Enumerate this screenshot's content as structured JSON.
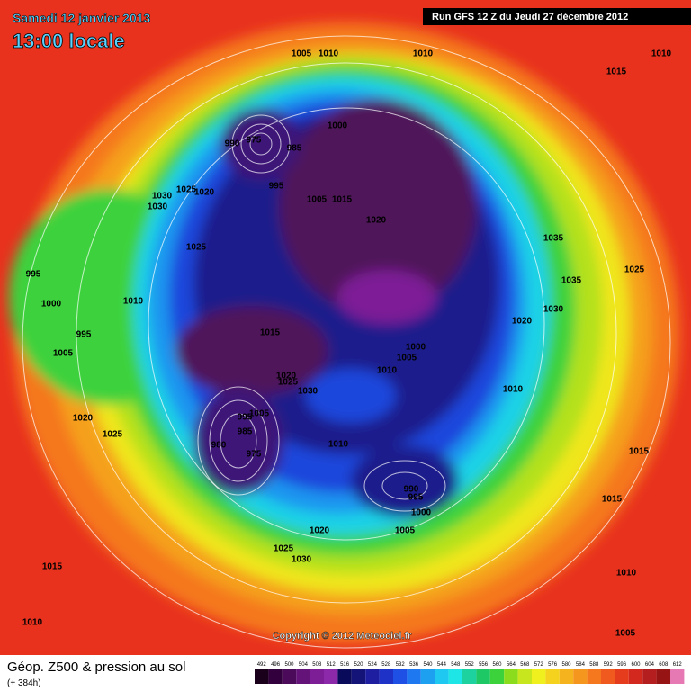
{
  "header": {
    "date": "Samedi 12 janvier 2013",
    "time": "13:00 locale",
    "run": "Run GFS 12 Z du Jeudi 27 décembre 2012"
  },
  "isobars": [
    1005,
    1010,
    1010,
    1015,
    1010,
    990,
    975,
    985,
    1000,
    995,
    1005,
    1015,
    1030,
    1025,
    1020,
    1030,
    1025,
    1020,
    1035,
    1025,
    995,
    1010,
    1000,
    1035,
    1030,
    1020,
    995,
    1015,
    1005,
    1000,
    1005,
    1010,
    1020,
    1025,
    1030,
    1010,
    995,
    1005,
    985,
    980,
    975,
    1010,
    1015,
    1020,
    1025,
    990,
    995,
    1000,
    1015,
    1020,
    1005,
    1025,
    1030,
    1015,
    1010,
    1010,
    1005
  ],
  "copyright": "Copyright © 2012 Meteociel.fr",
  "footer": {
    "title": "Géop. Z500 & pression au sol",
    "lead": "(+ 384h)"
  },
  "legend": {
    "values": [
      492,
      496,
      500,
      504,
      508,
      512,
      516,
      520,
      524,
      528,
      532,
      536,
      540,
      544,
      548,
      552,
      556,
      560,
      564,
      568,
      572,
      576,
      580,
      584,
      588,
      592,
      596,
      600,
      604,
      608,
      612
    ],
    "colors": [
      "#1a001a",
      "#32003c",
      "#4b0a5a",
      "#641478",
      "#7d1e96",
      "#8c28aa",
      "#0a0a5a",
      "#141478",
      "#1e1ea0",
      "#1e32c8",
      "#1e50e6",
      "#1e78f0",
      "#1ea0f0",
      "#1ec8f0",
      "#1ee6e6",
      "#1ed2a0",
      "#1ec864",
      "#3cd23c",
      "#8cdc1e",
      "#c8e61e",
      "#f0f01e",
      "#f5d21e",
      "#f5b41e",
      "#f5961e",
      "#f5781e",
      "#f05a1e",
      "#e63c1e",
      "#d2281e",
      "#b41e1e",
      "#961414",
      "#e678b4"
    ]
  }
}
